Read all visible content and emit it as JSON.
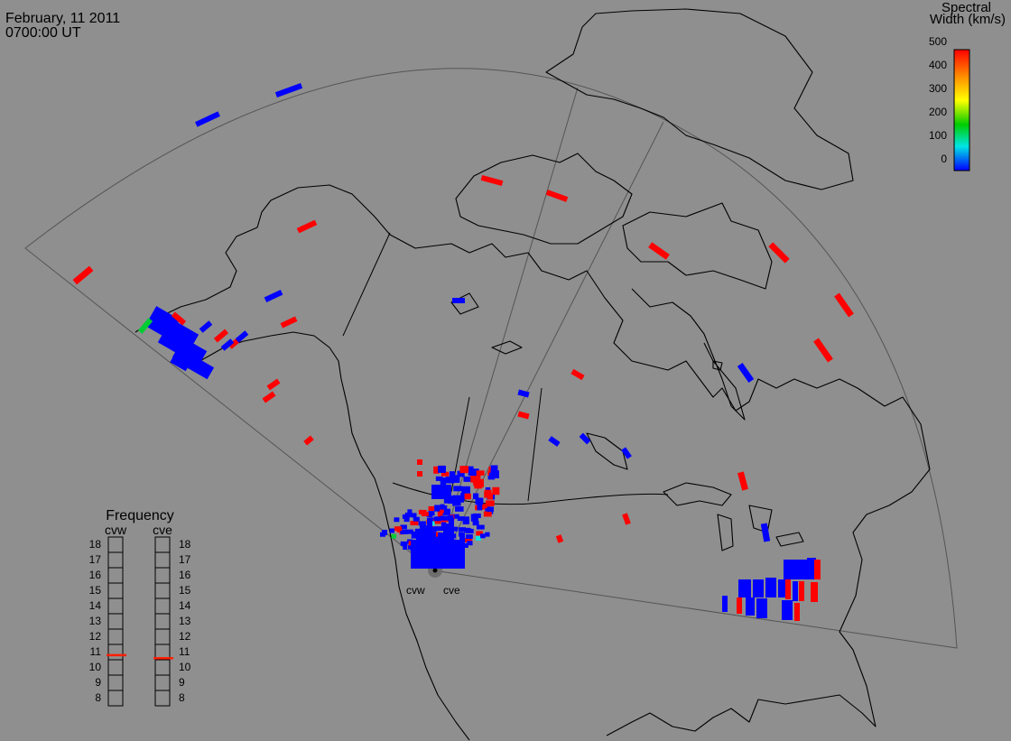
{
  "header": {
    "date": "February, 11 2011",
    "time": "0700:00 UT"
  },
  "colorbar": {
    "title_line1": "Spectral",
    "title_line2": "Width (km/s)",
    "ticks": [
      "500",
      "400",
      "300",
      "200",
      "100",
      "0"
    ],
    "stops": [
      "#ff0000",
      "#ff8c00",
      "#ffff00",
      "#00cc00",
      "#00e5e5",
      "#0000ff"
    ]
  },
  "frequency": {
    "title": "Frequency",
    "left_label": "cvw",
    "right_label": "cve",
    "ticks": [
      "18",
      "17",
      "16",
      "15",
      "14",
      "13",
      "12",
      "11",
      "10",
      "9",
      "8"
    ],
    "cvw_value": 10.8,
    "cve_value": 10.6,
    "marker_color": "#ff2000"
  },
  "radars": {
    "left": "cvw",
    "right": "cve"
  },
  "colors": {
    "background": "#8f8f8f",
    "high_width": "#ff0000",
    "low_width": "#0000ff"
  }
}
